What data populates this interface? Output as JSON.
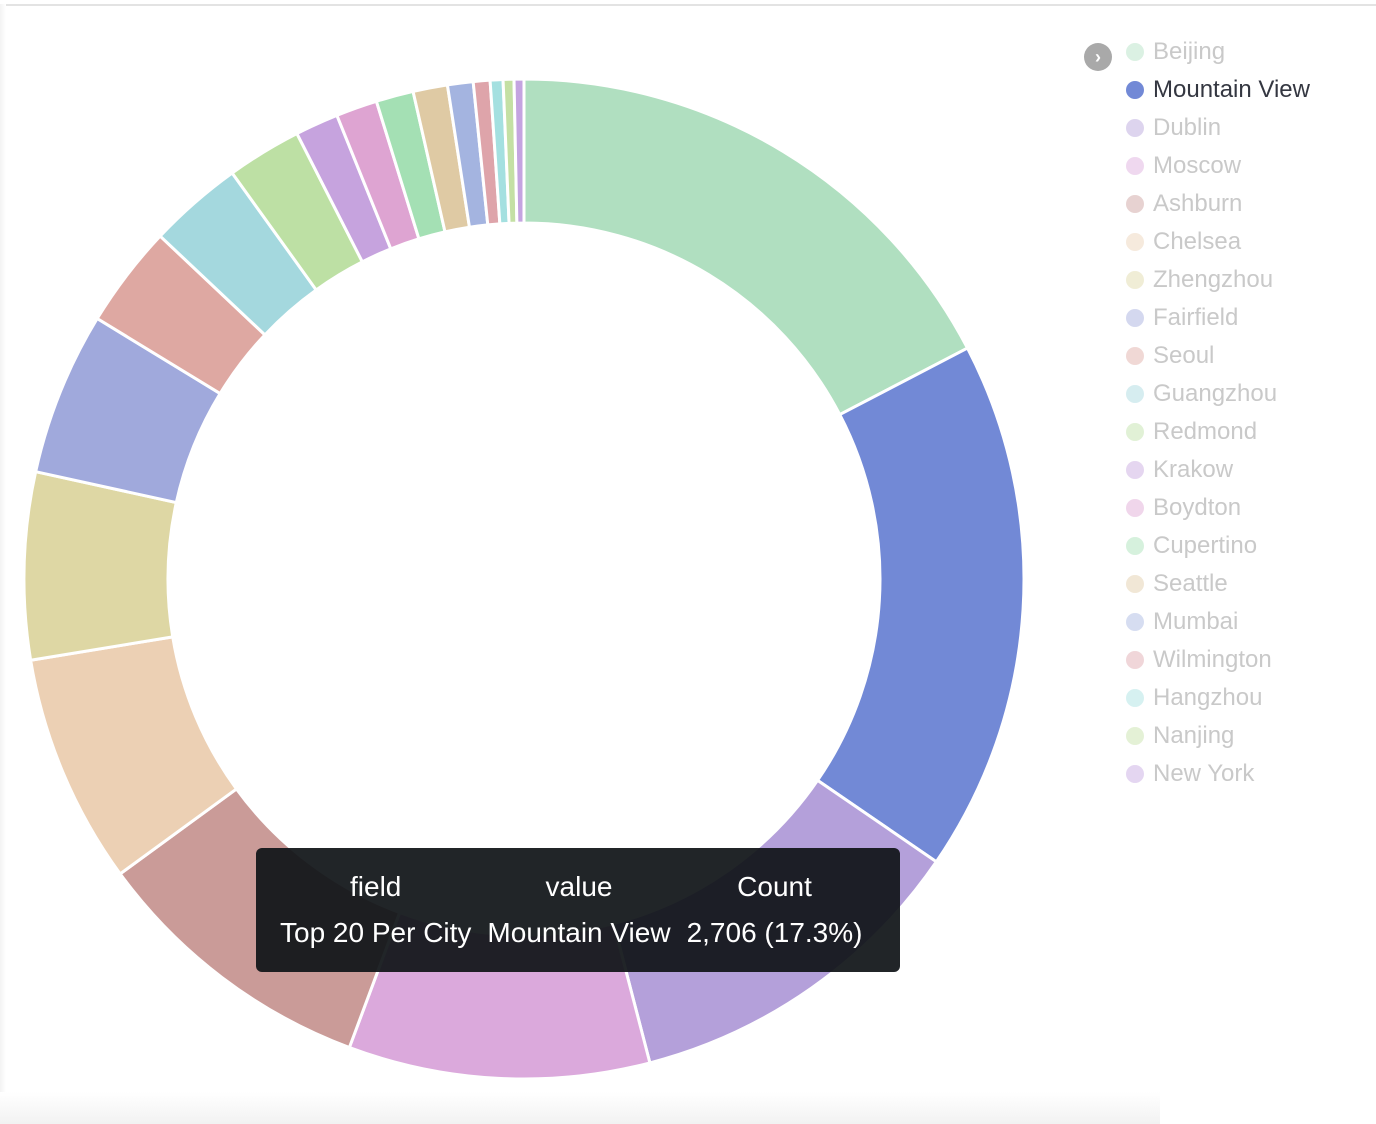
{
  "chart_data": {
    "type": "pie",
    "donut": true,
    "legend_position": "right",
    "categories": [
      "Beijing",
      "Mountain View",
      "Dublin",
      "Moscow",
      "Ashburn",
      "Chelsea",
      "Zhengzhou",
      "Fairfield",
      "Seoul",
      "Guangzhou",
      "Redmond",
      "Krakow",
      "Boydton",
      "Cupertino",
      "Seattle",
      "Mumbai",
      "Wilmington",
      "Hangzhou",
      "Nanjing",
      "New York"
    ],
    "values": [
      2730,
      2706,
      1790,
      1530,
      1460,
      1170,
      950,
      830,
      520,
      480,
      380,
      220,
      210,
      190,
      175,
      130,
      85,
      65,
      55,
      50
    ],
    "colors": [
      "#b0dfc0",
      "#7289d6",
      "#b4a0da",
      "#dba9dc",
      "#ca9b98",
      "#ecd0b4",
      "#ded7a4",
      "#a0a9dc",
      "#dea8a2",
      "#a4d8de",
      "#bde0a4",
      "#c6a3de",
      "#dea4d2",
      "#a4e0b4",
      "#dfcaa4",
      "#a4b4e0",
      "#dea4aa",
      "#a4e0e0",
      "#c4e0a4",
      "#c4a4e0"
    ],
    "highlighted": "Mountain View"
  },
  "legend": {
    "toggle_icon": "chevron-right-icon",
    "toggle_glyph": "›"
  },
  "tooltip": {
    "headers": [
      "field",
      "value",
      "Count"
    ],
    "row": [
      "Top 20 Per City",
      "Mountain View",
      "2,706 (17.3%)"
    ]
  }
}
